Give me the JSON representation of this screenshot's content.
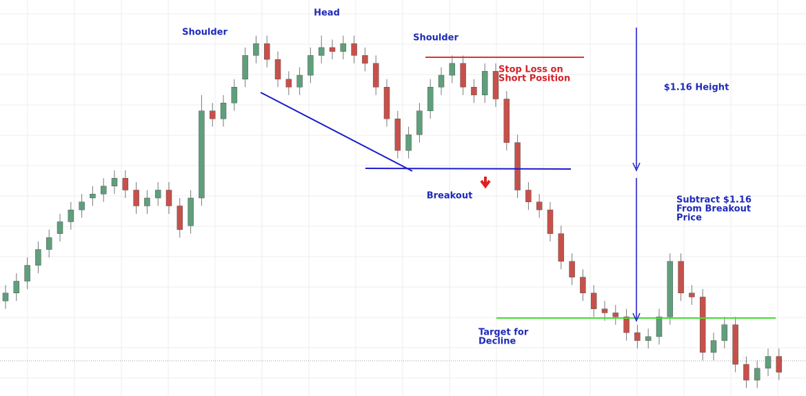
{
  "chart_data": {
    "type": "candlestick",
    "ylim": [
      0,
      100
    ],
    "up_color": "#5f9f7c",
    "down_color": "#c8504a",
    "grid": true,
    "annotations": {
      "head": "Head",
      "left_shoulder": "Shoulder",
      "right_shoulder": "Shoulder",
      "stop_loss": [
        "Stop Loss on",
        "Short Position"
      ],
      "height": "$1.16 Height",
      "breakout": "Breakout",
      "subtract": [
        "Subtract $1.16",
        "From Breakout",
        "Price"
      ],
      "target": [
        "Target for",
        "Decline"
      ]
    },
    "open": [
      24,
      26,
      29,
      33,
      37,
      41,
      44,
      47,
      50,
      51,
      53,
      55,
      52,
      48,
      50,
      52,
      48,
      43,
      50,
      72,
      70,
      74,
      80,
      86,
      89,
      85,
      80,
      78,
      81,
      86,
      88,
      87,
      89,
      86,
      84,
      78,
      70,
      62,
      66,
      72,
      78,
      81,
      84,
      78,
      76,
      82,
      75,
      64,
      52,
      49,
      47,
      41,
      34,
      30,
      26,
      22,
      21,
      20,
      16,
      14,
      15,
      20,
      34,
      26,
      25,
      11,
      14,
      18,
      8,
      4,
      7,
      10
    ],
    "high": [
      28,
      31,
      35,
      39,
      42,
      46,
      49,
      51,
      53,
      55,
      57,
      57,
      54,
      52,
      54,
      54,
      50,
      52,
      76,
      74,
      76,
      80,
      88,
      91,
      91,
      87,
      82,
      83,
      88,
      91,
      90,
      91,
      91,
      88,
      86,
      80,
      72,
      68,
      74,
      80,
      83,
      86,
      86,
      80,
      84,
      84,
      77,
      66,
      54,
      51,
      49,
      43,
      36,
      32,
      28,
      24,
      23,
      22,
      18,
      17,
      22,
      36,
      36,
      28,
      27,
      16,
      20,
      20,
      10,
      9,
      12,
      12
    ],
    "low": [
      22,
      24,
      27,
      31,
      35,
      39,
      42,
      45,
      48,
      49,
      51,
      50,
      46,
      46,
      48,
      46,
      40,
      41,
      48,
      68,
      68,
      72,
      78,
      84,
      83,
      78,
      76,
      76,
      79,
      84,
      85,
      85,
      84,
      82,
      76,
      68,
      60,
      60,
      64,
      70,
      76,
      79,
      76,
      74,
      74,
      73,
      62,
      50,
      47,
      45,
      39,
      32,
      28,
      24,
      20,
      19,
      18,
      14,
      12,
      12,
      13,
      18,
      24,
      23,
      9,
      9,
      12,
      6,
      2,
      2,
      5,
      4
    ],
    "close": [
      26,
      29,
      33,
      37,
      40,
      44,
      47,
      49,
      51,
      53,
      55,
      52,
      48,
      50,
      52,
      48,
      42,
      50,
      72,
      70,
      74,
      78,
      86,
      89,
      85,
      80,
      78,
      81,
      86,
      88,
      87,
      89,
      86,
      84,
      78,
      70,
      62,
      66,
      72,
      78,
      81,
      84,
      78,
      76,
      82,
      75,
      64,
      52,
      49,
      47,
      41,
      34,
      30,
      26,
      22,
      21,
      20,
      16,
      14,
      15,
      20,
      34,
      26,
      25,
      11,
      14,
      18,
      8,
      4,
      7,
      10,
      6
    ]
  }
}
